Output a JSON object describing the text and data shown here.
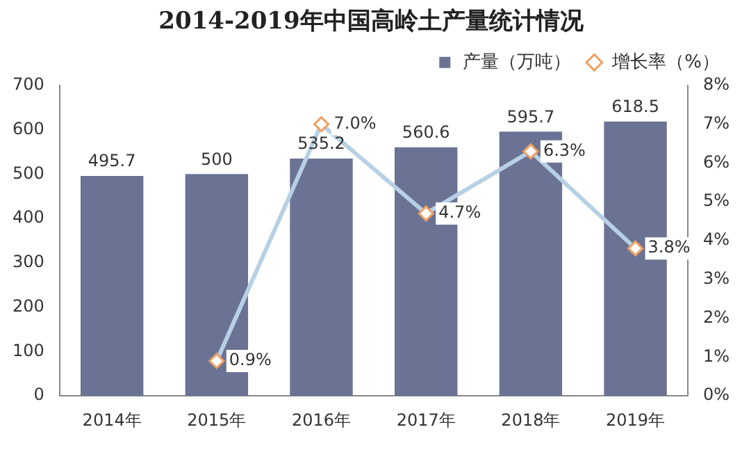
{
  "chart_data": {
    "type": "bar",
    "title": "2014-2019年中国高岭土产量统计情况",
    "categories": [
      "2014年",
      "2015年",
      "2016年",
      "2017年",
      "2018年",
      "2019年"
    ],
    "series": [
      {
        "name": "产量（万吨）",
        "color": "#6b7394",
        "values": [
          495.7,
          500,
          535.2,
          560.6,
          595.7,
          618.5
        ],
        "value_labels": [
          "495.7",
          "500",
          "535.2",
          "560.6",
          "595.7",
          "618.5"
        ]
      },
      {
        "name": "增长率（%）",
        "type": "line",
        "axis": "y2",
        "color": "#b7d0e3",
        "marker": "diamond",
        "values": [
          null,
          0.9,
          7.0,
          4.7,
          6.3,
          3.8
        ],
        "value_labels": [
          null,
          "0.9%",
          "7.0%",
          "4.7%",
          "6.3%",
          "3.8%"
        ]
      }
    ],
    "ylim": [
      0,
      700
    ],
    "yticks": [
      0,
      100,
      200,
      300,
      400,
      500,
      600,
      700
    ],
    "y2lim": [
      0,
      8
    ],
    "y2ticks": [
      {
        "value": 0,
        "label": "0%"
      },
      {
        "value": 1,
        "label": "1%"
      },
      {
        "value": 2,
        "label": "2%"
      },
      {
        "value": 3,
        "label": "3%"
      },
      {
        "value": 4,
        "label": "4%"
      },
      {
        "value": 5,
        "label": "5%"
      },
      {
        "value": 6,
        "label": "6%"
      },
      {
        "value": 7,
        "label": "7%"
      },
      {
        "value": 8,
        "label": "8%"
      }
    ],
    "legend": "top right",
    "grid": false,
    "line_style": "solid"
  }
}
